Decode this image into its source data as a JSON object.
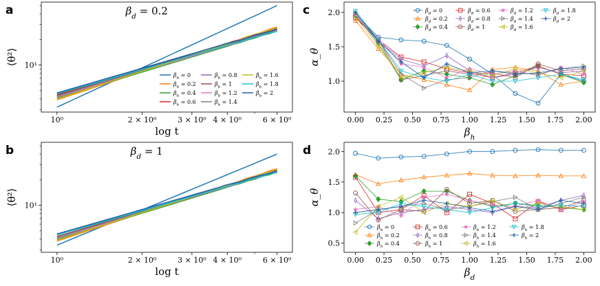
{
  "figure": {
    "markers": [
      "circle",
      "triangle-up",
      "diamond",
      "square",
      "diamond-thin",
      "circle",
      "star",
      "triangle-right",
      "triangle-left",
      "triangle-down",
      "plus"
    ],
    "colors": [
      "#1f77b4",
      "#ff7f0e",
      "#2ca02c",
      "#d62728",
      "#9467bd",
      "#8c564b",
      "#e377c2",
      "#7f7f7f",
      "#bcbd22",
      "#17becf",
      "#1f5fa8"
    ]
  },
  "chart_data": [
    {
      "panel": "a",
      "type": "line",
      "title": "β_d = 0.2",
      "xlabel": "log t",
      "ylabel": "⟨θ²⟩",
      "x_ticks": [
        "10⁰",
        "2 × 10⁰",
        "3 × 10⁰",
        "4 × 10⁰",
        "6 × 10⁰"
      ],
      "y_ticks": [
        "10¹"
      ],
      "x_scale": "log",
      "y_scale": "log",
      "xlim": [
        0.88,
        6.8
      ],
      "ylim": [
        2.8,
        55
      ],
      "legend_position": "lower-right",
      "x": [
        1.0,
        6.0
      ],
      "series": [
        {
          "name": "β_h = 0",
          "values": [
            3.2,
            50.0
          ]
        },
        {
          "name": "β_h = 0.2",
          "values": [
            3.9,
            28.0
          ]
        },
        {
          "name": "β_h = 0.4",
          "values": [
            4.1,
            25.0
          ]
        },
        {
          "name": "β_h = 0.6",
          "values": [
            4.5,
            27.0
          ]
        },
        {
          "name": "β_h = 0.8",
          "values": [
            4.3,
            26.0
          ]
        },
        {
          "name": "β_h = 1",
          "values": [
            4.4,
            26.5
          ]
        },
        {
          "name": "β_h = 1.2",
          "values": [
            4.2,
            25.5
          ]
        },
        {
          "name": "β_h = 1.4",
          "values": [
            4.3,
            26.0
          ]
        },
        {
          "name": "β_h = 1.6",
          "values": [
            4.0,
            27.5
          ]
        },
        {
          "name": "β_h = 1.8",
          "values": [
            4.6,
            25.0
          ]
        },
        {
          "name": "β_h = 2",
          "values": [
            4.7,
            26.5
          ]
        }
      ]
    },
    {
      "panel": "b",
      "type": "line",
      "title": "β_d = 1",
      "xlabel": "log t",
      "ylabel": "⟨θ²⟩",
      "x_ticks": [
        "10⁰",
        "2 × 10⁰",
        "3 × 10⁰",
        "4 × 10⁰",
        "6 × 10⁰"
      ],
      "y_ticks": [
        "10¹"
      ],
      "x_scale": "log",
      "y_scale": "log",
      "xlim": [
        0.88,
        6.8
      ],
      "ylim": [
        2.8,
        55
      ],
      "x": [
        1.0,
        6.0
      ],
      "series": [
        {
          "name": "β_h = 0",
          "values": [
            3.4,
            40.0
          ]
        },
        {
          "name": "β_h = 0.2",
          "values": [
            3.8,
            27.0
          ]
        },
        {
          "name": "β_h = 0.4",
          "values": [
            4.0,
            24.5
          ]
        },
        {
          "name": "β_h = 0.6",
          "values": [
            4.3,
            25.5
          ]
        },
        {
          "name": "β_h = 0.8",
          "values": [
            4.2,
            25.0
          ]
        },
        {
          "name": "β_h = 1",
          "values": [
            4.3,
            25.5
          ]
        },
        {
          "name": "β_h = 1.2",
          "values": [
            4.1,
            25.0
          ]
        },
        {
          "name": "β_h = 1.4",
          "values": [
            4.2,
            25.2
          ]
        },
        {
          "name": "β_h = 1.6",
          "values": [
            3.9,
            26.5
          ]
        },
        {
          "name": "β_h = 1.8",
          "values": [
            4.5,
            24.5
          ]
        },
        {
          "name": "β_h = 2",
          "values": [
            4.6,
            25.5
          ]
        }
      ]
    },
    {
      "panel": "c",
      "type": "line",
      "xlabel": "β_h",
      "ylabel": "α_θ",
      "x_ticks": [
        "0.00",
        "0.25",
        "0.50",
        "0.75",
        "1.00",
        "1.25",
        "1.50",
        "1.75",
        "2.00"
      ],
      "y_ticks": [
        "1.0",
        "1.5",
        "2.0"
      ],
      "xlim": [
        -0.1,
        2.1
      ],
      "ylim": [
        0.55,
        2.15
      ],
      "legend_position": "top-right",
      "x": [
        0.0,
        0.2,
        0.4,
        0.6,
        0.8,
        1.0,
        1.2,
        1.4,
        1.6,
        1.8,
        2.0
      ],
      "series": [
        {
          "name": "β_d = 0",
          "values": [
            1.98,
            1.64,
            1.6,
            1.58,
            1.52,
            1.32,
            1.1,
            0.82,
            0.68,
            1.1,
            1.0
          ]
        },
        {
          "name": "β_d = 0.2",
          "values": [
            1.88,
            1.47,
            1.1,
            1.02,
            0.95,
            0.87,
            1.17,
            1.2,
            1.15,
            0.95,
            1.0
          ]
        },
        {
          "name": "β_d = 0.4",
          "values": [
            1.96,
            1.55,
            1.02,
            1.15,
            1.1,
            1.05,
            0.95,
            1.08,
            1.22,
            1.1,
            0.98
          ]
        },
        {
          "name": "β_d = 0.6",
          "values": [
            1.92,
            1.6,
            1.35,
            1.28,
            1.18,
            1.12,
            1.05,
            1.12,
            1.22,
            1.1,
            1.08
          ]
        },
        {
          "name": "β_d = 0.8",
          "values": [
            1.94,
            1.58,
            1.32,
            1.22,
            1.37,
            1.15,
            1.05,
            1.1,
            1.2,
            1.12,
            1.15
          ]
        },
        {
          "name": "β_d = 1",
          "values": [
            1.95,
            1.6,
            1.02,
            1.08,
            1.15,
            1.1,
            1.12,
            1.05,
            1.25,
            1.15,
            1.18
          ]
        },
        {
          "name": "β_d = 1.2",
          "values": [
            1.97,
            1.62,
            1.25,
            1.2,
            1.05,
            1.18,
            1.1,
            1.15,
            1.08,
            1.2,
            1.1
          ]
        },
        {
          "name": "β_d = 1.4",
          "values": [
            1.99,
            1.6,
            1.1,
            0.9,
            1.02,
            1.05,
            1.15,
            1.12,
            1.1,
            1.18,
            1.22
          ]
        },
        {
          "name": "β_d = 1.6",
          "values": [
            1.93,
            1.52,
            1.05,
            1.12,
            1.2,
            1.15,
            1.08,
            1.18,
            1.12,
            1.05,
            1.15
          ]
        },
        {
          "name": "β_d = 1.8",
          "values": [
            2.02,
            1.6,
            1.15,
            1.05,
            1.0,
            1.1,
            1.0,
            1.0,
            1.05,
            1.1,
            1.02
          ]
        },
        {
          "name": "β_d = 2",
          "values": [
            2.0,
            1.58,
            1.28,
            1.05,
            1.25,
            1.12,
            1.15,
            1.1,
            1.12,
            1.18,
            1.2
          ]
        }
      ]
    },
    {
      "panel": "d",
      "type": "line",
      "xlabel": "β_d",
      "ylabel": "α_θ",
      "x_ticks": [
        "0.00",
        "0.25",
        "0.50",
        "0.75",
        "1.00",
        "1.25",
        "1.50",
        "1.75",
        "2.00"
      ],
      "y_ticks": [
        "0.5",
        "1.0",
        "1.5",
        "2.0"
      ],
      "xlim": [
        -0.1,
        2.1
      ],
      "ylim": [
        0.35,
        2.15
      ],
      "legend_position": "lower-right",
      "x": [
        0.0,
        0.2,
        0.4,
        0.6,
        0.8,
        1.0,
        1.2,
        1.4,
        1.6,
        1.8,
        2.0
      ],
      "series": [
        {
          "name": "β_h = 0",
          "values": [
            1.97,
            1.89,
            1.91,
            1.92,
            1.96,
            2.0,
            2.0,
            2.02,
            2.03,
            2.02,
            2.02
          ]
        },
        {
          "name": "β_h = 0.2",
          "values": [
            1.62,
            1.47,
            1.53,
            1.58,
            1.61,
            1.64,
            1.61,
            1.6,
            1.61,
            1.6,
            1.6
          ]
        },
        {
          "name": "β_h = 0.4",
          "values": [
            1.6,
            1.22,
            1.18,
            1.35,
            1.35,
            1.2,
            1.1,
            1.15,
            1.12,
            1.08,
            1.05
          ]
        },
        {
          "name": "β_h = 0.6",
          "values": [
            1.58,
            1.0,
            1.05,
            1.28,
            1.0,
            1.3,
            1.15,
            0.9,
            1.18,
            1.05,
            1.12
          ]
        },
        {
          "name": "β_h = 0.8",
          "values": [
            1.2,
            0.9,
            1.0,
            1.05,
            1.1,
            1.05,
            1.0,
            1.1,
            1.08,
            1.2,
            1.28
          ]
        },
        {
          "name": "β_h = 1",
          "values": [
            1.32,
            0.88,
            1.05,
            1.02,
            1.38,
            1.15,
            1.2,
            1.02,
            1.05,
            1.08,
            1.2
          ]
        },
        {
          "name": "β_h = 1.2",
          "values": [
            1.05,
            1.1,
            0.95,
            1.25,
            1.3,
            1.2,
            1.12,
            1.1,
            1.2,
            1.05,
            1.18
          ]
        },
        {
          "name": "β_h = 1.4",
          "values": [
            0.83,
            1.05,
            1.1,
            1.15,
            1.05,
            1.1,
            1.18,
            1.25,
            1.05,
            1.15,
            1.25
          ]
        },
        {
          "name": "β_h = 1.6",
          "values": [
            0.68,
            1.1,
            1.25,
            1.0,
            1.15,
            1.1,
            1.2,
            1.05,
            1.15,
            1.1,
            1.05
          ]
        },
        {
          "name": "β_h = 1.8",
          "values": [
            0.97,
            1.0,
            1.15,
            1.1,
            1.05,
            1.0,
            1.08,
            1.15,
            1.1,
            1.12,
            1.1
          ]
        },
        {
          "name": "β_h = 2",
          "values": [
            1.0,
            1.05,
            1.1,
            1.2,
            1.15,
            1.08,
            1.02,
            1.1,
            1.05,
            1.2,
            1.15
          ]
        }
      ]
    }
  ]
}
